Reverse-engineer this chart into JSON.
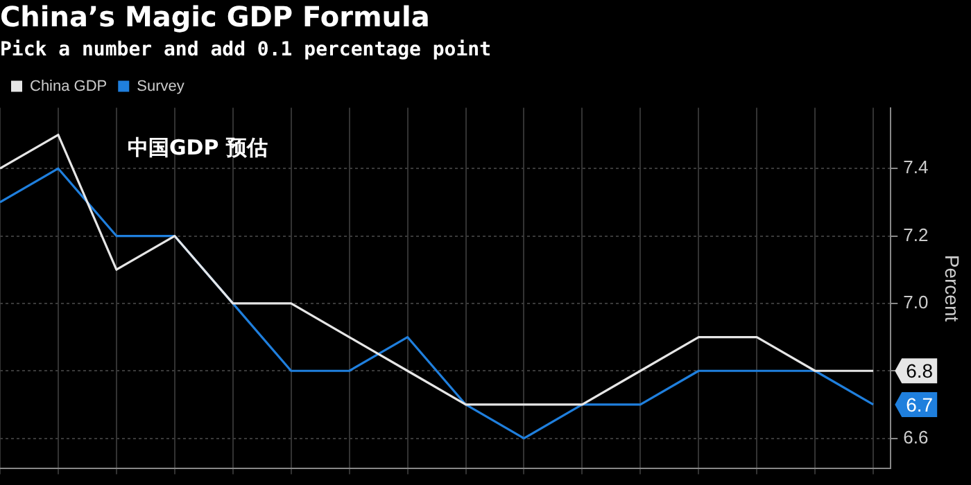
{
  "chart_data": {
    "type": "line",
    "title": "China’s Magic GDP Formula",
    "subtitle": "Pick a number and add 0.1 percentage point",
    "ylabel": "Percent",
    "annotations": [
      "中国GDP 预估"
    ],
    "categories": [
      null,
      null,
      null,
      null,
      null,
      null,
      null,
      null,
      null,
      null,
      null,
      null,
      null,
      null,
      null,
      null
    ],
    "series": [
      {
        "name": "China GDP",
        "color": "#e6e6e6",
        "values": [
          7.4,
          7.5,
          7.1,
          7.2,
          7.0,
          7.0,
          6.9,
          6.8,
          6.7,
          6.7,
          6.7,
          6.8,
          6.9,
          6.9,
          6.8,
          6.8
        ],
        "value_labels": [
          null,
          null,
          null,
          null,
          null,
          null,
          null,
          null,
          null,
          null,
          null,
          null,
          null,
          null,
          null,
          "6.8"
        ]
      },
      {
        "name": "Survey",
        "color": "#1f7fdd",
        "values": [
          7.3,
          7.4,
          7.2,
          7.2,
          7.0,
          6.8,
          6.8,
          6.9,
          6.7,
          6.6,
          6.7,
          6.7,
          6.8,
          6.8,
          6.8,
          6.7
        ],
        "value_labels": [
          null,
          null,
          null,
          null,
          null,
          null,
          null,
          null,
          null,
          null,
          null,
          null,
          null,
          null,
          null,
          "6.7"
        ]
      }
    ],
    "ylim": [
      6.51,
      7.58
    ],
    "yticks": [
      {
        "value": 6.6,
        "label": "6.6"
      },
      {
        "value": 6.8,
        "label": null
      },
      {
        "value": 7.0,
        "label": "7.0"
      },
      {
        "value": 7.2,
        "label": "7.2"
      },
      {
        "value": 7.4,
        "label": "7.4"
      }
    ],
    "grid": true,
    "legend": "top left",
    "tick_labels": "y",
    "marker": "none",
    "line_style": "solid"
  }
}
